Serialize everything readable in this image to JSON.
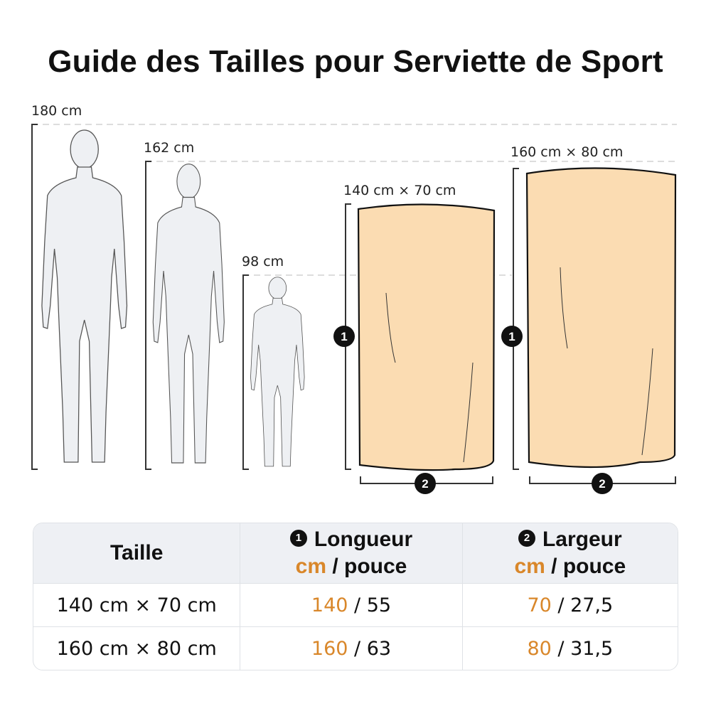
{
  "title": "Guide des Tailles pour Serviette de Sport",
  "figures": [
    {
      "label": "180 cm"
    },
    {
      "label": "162 cm"
    },
    {
      "label": "98 cm"
    }
  ],
  "towels": [
    {
      "label": "140 cm × 70 cm",
      "length_marker": "1",
      "width_marker": "2"
    },
    {
      "label": "160 cm × 80 cm",
      "length_marker": "1",
      "width_marker": "2"
    }
  ],
  "colors": {
    "towel": "#fbdcb2",
    "accent": "#d9872a",
    "figure": "#eef0f3",
    "header_bg": "#eef0f4"
  },
  "table": {
    "headers": {
      "size": "Taille",
      "length_marker": "1",
      "length": "Longueur",
      "width_marker": "2",
      "width": "Largeur",
      "unit_cm": "cm",
      "unit_sep": " / pouce"
    },
    "rows": [
      {
        "size": "140 cm × 70 cm",
        "length_cm": "140",
        "length_in": " / 55",
        "width_cm": "70",
        "width_in": " / 27,5"
      },
      {
        "size": "160 cm × 80 cm",
        "length_cm": "160",
        "length_in": " / 63",
        "width_cm": "80",
        "width_in": " / 31,5"
      }
    ]
  }
}
